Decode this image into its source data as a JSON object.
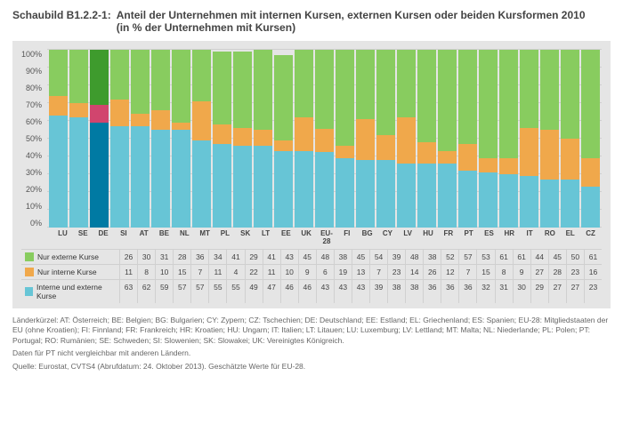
{
  "title_label": "Schaubild B1.2.2-1:",
  "title_line1": "Anteil der Unternehmen mit internen Kursen, externen Kursen oder beiden Kursformen 2010",
  "title_line2": "(in % der Unternehmen mit Kursen)",
  "chart": {
    "type": "stacked-bar",
    "ylim": [
      0,
      100
    ],
    "ytick_step": 10,
    "ytick_suffix": "%",
    "categories": [
      "LU",
      "SE",
      "DE",
      "SI",
      "AT",
      "BE",
      "NL",
      "MT",
      "PL",
      "SK",
      "LT",
      "EE",
      "UK",
      "EU-28",
      "FI",
      "BG",
      "CY",
      "LV",
      "HU",
      "FR",
      "PT",
      "ES",
      "HR",
      "IT",
      "RO",
      "EL",
      "CZ"
    ],
    "highlight": {
      "DE": {
        "s0": "#007aa3",
        "s1": "#d1456e",
        "s2": "#3e9b2d"
      }
    },
    "series": [
      {
        "key": "s0",
        "label": "Interne und externe Kurse",
        "color": "#67c5d6",
        "values": [
          63,
          62,
          59,
          57,
          57,
          55,
          55,
          49,
          47,
          46,
          46,
          43,
          43,
          43,
          39,
          38,
          38,
          36,
          36,
          36,
          32,
          31,
          30,
          29,
          27,
          27,
          23
        ]
      },
      {
        "key": "s1",
        "label": "Nur interne Kurse",
        "color": "#f0a84b",
        "values": [
          11,
          8,
          10,
          15,
          7,
          11,
          4,
          22,
          11,
          10,
          9,
          6,
          19,
          13,
          7,
          23,
          14,
          26,
          12,
          7,
          15,
          8,
          9,
          27,
          28,
          23,
          16
        ]
      },
      {
        "key": "s2",
        "label": "Nur externe Kurse",
        "color": "#88cc5f",
        "values": [
          26,
          30,
          31,
          28,
          36,
          34,
          41,
          29,
          41,
          43,
          45,
          48,
          38,
          45,
          54,
          39,
          48,
          38,
          52,
          57,
          53,
          61,
          61,
          44,
          45,
          50,
          61
        ]
      }
    ],
    "background": "#e5e5e5",
    "grid_color": "#cfcfcf",
    "label_fontsize": 9
  },
  "footnotes": {
    "codes": "Länderkürzel: AT: Österreich; BE: Belgien; BG: Bulgarien; CY: Zypern; CZ: Tschechien; DE: Deutschland; EE: Estland; EL: Griechenland; ES: Spanien; EU-28: Mitgliedstaaten der EU (ohne Kroatien); FI: Finnland; FR: Frankreich; HR: Kroatien; HU: Ungarn; IT: Italien; LT: Litauen; LU: Luxemburg; LV: Lettland; MT: Malta; NL: Niederlande; PL: Polen; PT: Portugal; RO: Rumänien; SE: Schweden; SI: Slowenien; SK: Slowakei; UK: Vereinigtes Königreich.",
    "pt": "Daten für PT nicht vergleichbar mit anderen Ländern.",
    "source": "Quelle: Eurostat, CVTS4 (Abrufdatum: 24. Oktober 2013). Geschätzte Werte für EU-28."
  }
}
